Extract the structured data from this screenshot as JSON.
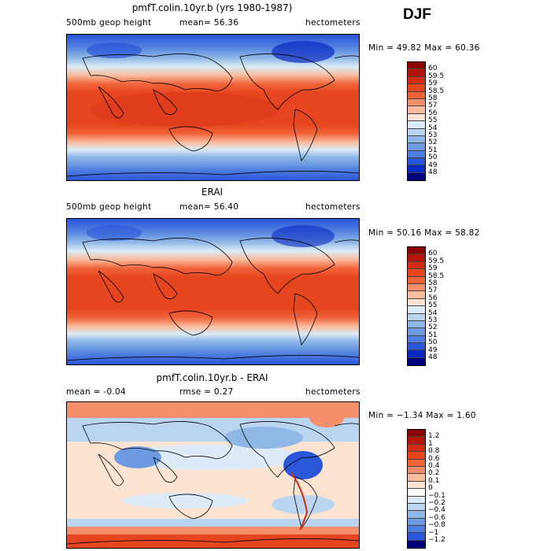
{
  "season": "DJF",
  "panels": [
    {
      "title": "pmfT.colin.10yr.b (yrs 1980-1987)",
      "left_label": "500mb geop height",
      "mean_label": "mean=  56.36",
      "units": "hectometers",
      "minmax": "Min =  49.82 Max =  60.36",
      "levels": [
        "60",
        "59.5",
        "59",
        "58.5",
        "58",
        "57",
        "56",
        "55",
        "54",
        "53",
        "52",
        "51",
        "50",
        "49",
        "48"
      ],
      "colors": [
        "#8b0000",
        "#b2150a",
        "#d02d14",
        "#e6461f",
        "#f0643a",
        "#f58e6a",
        "#f9bc9e",
        "#fde4d2",
        "#dcebf7",
        "#b9d5ef",
        "#8fb8e6",
        "#6d9ae0",
        "#4f7ee0",
        "#2a56d8",
        "#0a2ac2",
        "#00007c"
      ],
      "map_name": "model-map"
    },
    {
      "title": "ERAI",
      "left_label": "500mb geop height",
      "mean_label": "mean=  56.40",
      "units": "hectometers",
      "minmax": "Min =  50.16 Max =  58.82",
      "levels": [
        "60",
        "59.5",
        "59",
        "58.5",
        "58",
        "57",
        "56",
        "55",
        "54",
        "53",
        "52",
        "51",
        "50",
        "49",
        "48"
      ],
      "colors": [
        "#8b0000",
        "#b2150a",
        "#d02d14",
        "#e6461f",
        "#f0643a",
        "#f58e6a",
        "#f9bc9e",
        "#fde4d2",
        "#dcebf7",
        "#b9d5ef",
        "#8fb8e6",
        "#6d9ae0",
        "#4f7ee0",
        "#2a56d8",
        "#0a2ac2",
        "#00007c"
      ],
      "map_name": "obs-map"
    },
    {
      "title": "pmfT.colin.10yr.b - ERAI",
      "left_label": "mean =  -0.04",
      "mean_label": "rmse =   0.27",
      "units": "hectometers",
      "minmax": "Min = −1.34 Max =   1.60",
      "levels": [
        "1.2",
        "1",
        "0.8",
        "0.6",
        "0.4",
        "0.2",
        "0.1",
        "0",
        "−0.1",
        "−0.2",
        "−0.4",
        "−0.6",
        "−0.8",
        "−1",
        "−1.2"
      ],
      "colors": [
        "#8b0000",
        "#b2150a",
        "#d02d14",
        "#e6461f",
        "#f0643a",
        "#f58e6a",
        "#f9bc9e",
        "#fde4d2",
        "#ffffff",
        "#dcebf7",
        "#b9d5ef",
        "#8fb8e6",
        "#6d9ae0",
        "#4f7ee0",
        "#2a56d8",
        "#00007c"
      ],
      "map_name": "difference-map"
    }
  ]
}
